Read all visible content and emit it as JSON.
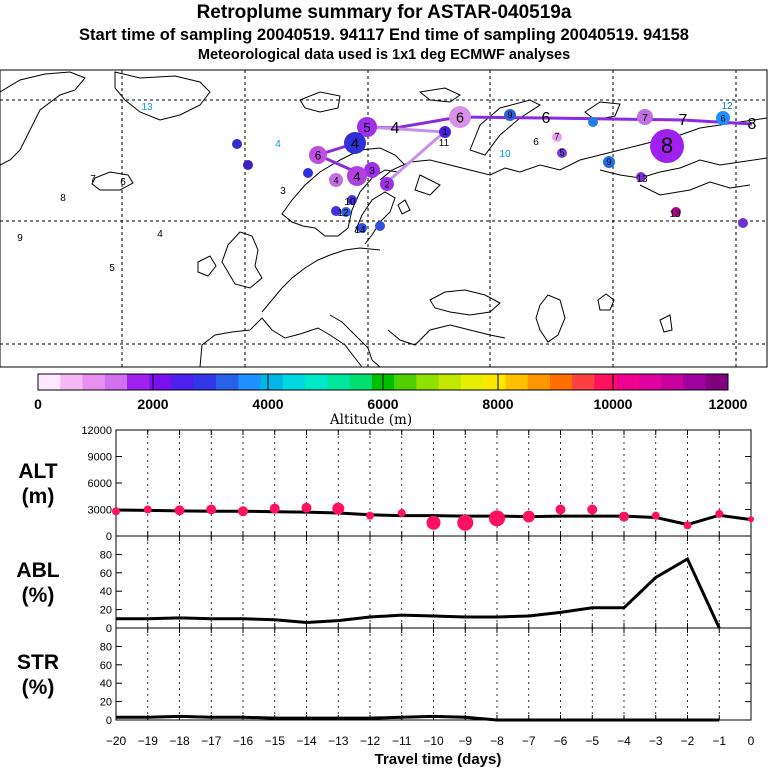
{
  "title": {
    "line1": "Retroplume summary for ASTAR-040519a",
    "line2": "Start time of sampling 20040519. 94117     End time of sampling 20040519. 94158",
    "line3": "Meteorological data used is 1x1 deg ECMWF analyses"
  },
  "map": {
    "route": {
      "label_points": [
        {
          "label": "8",
          "color": "#9a2ee0"
        },
        {
          "label": "7",
          "color": "#8a3ee6"
        },
        {
          "label": "6",
          "color": "#9a2ee0"
        },
        {
          "label": "5",
          "color": "#9a2ee0"
        },
        {
          "label": "4",
          "color": "#b06ee8"
        },
        {
          "label": "3",
          "color": "#b06ee8"
        }
      ],
      "line_color": "#8a2be2",
      "light_line_color": "#c890e8"
    },
    "clusters": [
      {
        "label": "8",
        "color": "#a020f0"
      },
      {
        "label": "6",
        "color": "#d890e8"
      },
      {
        "label": "7",
        "color": "#c070e0"
      },
      {
        "label": "5",
        "color": "#a030e8"
      },
      {
        "label": "4",
        "color": "#3030d8"
      },
      {
        "label": "6",
        "color": "#c050e0"
      },
      {
        "label": "1",
        "color": "#4a20e0"
      },
      {
        "label": "4",
        "color": "#c070e0"
      },
      {
        "label": "3",
        "color": "#a030e8"
      },
      {
        "label": "2",
        "color": "#a030e8"
      },
      {
        "label": "4",
        "color": "#b040e0"
      },
      {
        "label": "6",
        "color": "#1e90ff"
      },
      {
        "label": "9",
        "color": "#1e70e0"
      },
      {
        "label": "7",
        "color": "#e8a0f0"
      },
      {
        "label": "5",
        "color": "#7040d8"
      },
      {
        "label": "9",
        "color": "#3060e0"
      }
    ],
    "numbers": [
      {
        "label": "13",
        "color": "#00a0d0"
      },
      {
        "label": "12",
        "color": "#0080d0"
      },
      {
        "label": "4",
        "color": "#00a0d0"
      },
      {
        "label": "10",
        "color": "#00a0d0"
      },
      {
        "label": "6",
        "color": "#000000"
      },
      {
        "label": "13",
        "color": "#000000"
      },
      {
        "label": "7",
        "color": "#000000"
      },
      {
        "label": "6",
        "color": "#000000"
      },
      {
        "label": "8",
        "color": "#000000"
      },
      {
        "label": "3",
        "color": "#000000"
      },
      {
        "label": "9",
        "color": "#000000"
      },
      {
        "label": "4",
        "color": "#000000"
      },
      {
        "label": "5",
        "color": "#000000"
      },
      {
        "label": "14",
        "color": "#000000"
      },
      {
        "label": "12",
        "color": "#000000"
      },
      {
        "label": "13",
        "color": "#000000"
      },
      {
        "label": "11",
        "color": "#000000"
      },
      {
        "label": "10",
        "color": "#000000"
      }
    ]
  },
  "colorbar": {
    "label": "Altitude (m)",
    "tick_labels": [
      "0",
      "2000",
      "4000",
      "6000",
      "8000",
      "10000",
      "12000"
    ],
    "colors": [
      "#ffe8ff",
      "#f7b8f7",
      "#e890f0",
      "#d070f0",
      "#a020f0",
      "#7a10f0",
      "#4e20f0",
      "#3038e8",
      "#2a60e8",
      "#1e90ff",
      "#00b8e8",
      "#00d8e0",
      "#00e8c8",
      "#00e8a0",
      "#00e070",
      "#00c000",
      "#50d000",
      "#90e000",
      "#c0e800",
      "#e8f000",
      "#ffe800",
      "#ffc000",
      "#ff9800",
      "#ff7000",
      "#ff4040",
      "#ff1060",
      "#f00090",
      "#e000a0",
      "#c800a0",
      "#a000a0",
      "#800080"
    ]
  },
  "chart_data": [
    {
      "type": "line",
      "id": "ALT",
      "ylabel": "ALT\n(m)",
      "ylabel_lines": [
        "ALT",
        "(m)"
      ],
      "ylim": [
        0,
        12000
      ],
      "yticks": [
        0,
        3000,
        6000,
        9000,
        12000
      ],
      "x": [
        -20,
        -19,
        -18,
        -17,
        -16,
        -15,
        -14,
        -13,
        -12,
        -11,
        -10,
        -9,
        -8,
        -7,
        -6,
        -5,
        -4,
        -3,
        -2,
        -1,
        0
      ],
      "series": [
        {
          "name": "mean altitude",
          "values": [
            2950,
            2900,
            2850,
            2800,
            2800,
            2750,
            2700,
            2600,
            2400,
            2300,
            2300,
            2250,
            2250,
            2200,
            2250,
            2250,
            2250,
            2100,
            1300,
            2350,
            1850
          ]
        },
        {
          "name": "cluster altitudes",
          "values": [
            2800,
            3000,
            2900,
            3000,
            2800,
            3100,
            3200,
            3100,
            2300,
            2600,
            1500,
            1500,
            2000,
            2200,
            3000,
            3000,
            2200,
            2300,
            1200,
            2500,
            1900
          ]
        }
      ],
      "marker_color": "#ff1060"
    },
    {
      "type": "line",
      "id": "ABL",
      "ylabel": "ABL\n(%)",
      "ylabel_lines": [
        "ABL",
        "(%)"
      ],
      "ylim": [
        0,
        100
      ],
      "yticks": [
        0,
        20,
        40,
        60,
        80
      ],
      "x": [
        -20,
        -19,
        -18,
        -17,
        -16,
        -15,
        -14,
        -13,
        -12,
        -11,
        -10,
        -9,
        -8,
        -7,
        -6,
        -5,
        -4,
        -3,
        -2,
        -1
      ],
      "series": [
        {
          "name": "ABL fraction",
          "values": [
            10,
            10,
            11,
            10,
            10,
            9,
            6,
            8,
            12,
            14,
            13,
            12,
            12,
            13,
            17,
            22,
            22,
            55,
            75,
            0
          ]
        }
      ]
    },
    {
      "type": "line",
      "id": "STR",
      "ylabel": "STR\n(%)",
      "ylabel_lines": [
        "STR",
        "(%)"
      ],
      "ylim": [
        0,
        100
      ],
      "yticks": [
        0,
        20,
        40,
        60,
        80
      ],
      "x": [
        -20,
        -19,
        -18,
        -17,
        -16,
        -15,
        -14,
        -13,
        -12,
        -11,
        -10,
        -9,
        -8,
        -7,
        -6,
        -5,
        -4,
        -3,
        -2,
        -1
      ],
      "series": [
        {
          "name": "STR fraction",
          "values": [
            3,
            3,
            4,
            3,
            3,
            2,
            2,
            2,
            2,
            3,
            4,
            3,
            0,
            0,
            0,
            0,
            0,
            0,
            0,
            0
          ]
        }
      ],
      "xlabel": "Travel time (days)",
      "xtick_labels": [
        "−20",
        "−19",
        "−18",
        "−17",
        "−16",
        "−15",
        "−14",
        "−13",
        "−12",
        "−11",
        "−10",
        "−9",
        "−8",
        "−7",
        "−6",
        "−5",
        "−4",
        "−3",
        "−2",
        "−1",
        "0"
      ]
    }
  ]
}
